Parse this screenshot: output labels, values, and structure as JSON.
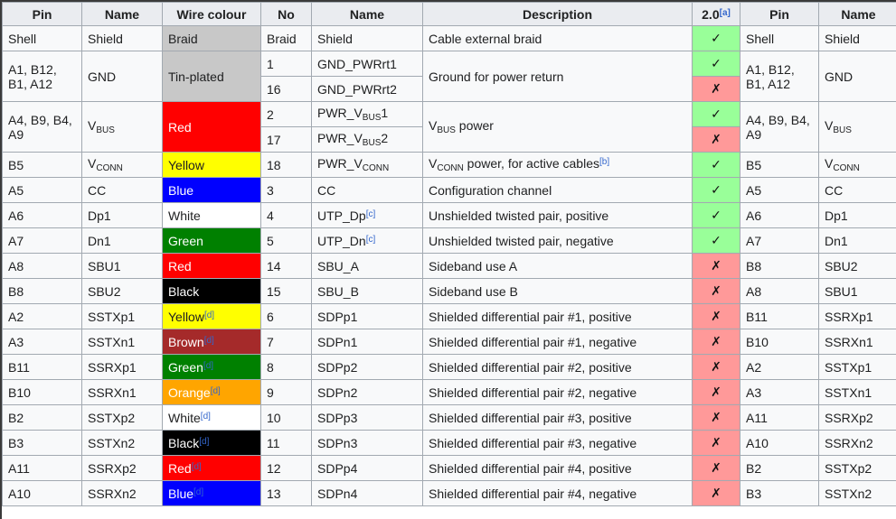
{
  "colors": {
    "header_bg": "#eaecf0",
    "row_bg": "#f8f9fa",
    "border": "#a2a9b1",
    "text": "#202122",
    "link": "#3366cc",
    "yes_bg": "#99ff99",
    "no_bg": "#ff9999",
    "silver": "#c8c8c8",
    "red": "#ff0000",
    "yellow": "#ffff00",
    "blue": "#0000ff",
    "white": "#ffffff",
    "green": "#008000",
    "brown": "#a52a2a",
    "orange": "#ffa500",
    "black": "#000000"
  },
  "marks": {
    "yes": "✓",
    "no": "✗"
  },
  "table": {
    "headers": [
      {
        "key": "pin-left",
        "label": "Pin"
      },
      {
        "key": "name-left",
        "label": "Name"
      },
      {
        "key": "wire-colour",
        "label": "Wire colour"
      },
      {
        "key": "no",
        "label": "No"
      },
      {
        "key": "wire-name",
        "label": "Name"
      },
      {
        "key": "description",
        "label": "Description"
      },
      {
        "key": "usb2-support",
        "label": "2.0^[a]^"
      },
      {
        "key": "pin-right",
        "label": "Pin"
      },
      {
        "key": "name-right",
        "label": "Name"
      }
    ],
    "rows": [
      [
        {
          "col": "pin-left",
          "t": "Shell"
        },
        {
          "col": "name-left",
          "t": "Shield"
        },
        {
          "col": "wire-colour",
          "t": "Braid",
          "bg": "silver"
        },
        {
          "col": "no",
          "t": "Braid"
        },
        {
          "col": "wire-name",
          "t": "Shield"
        },
        {
          "col": "description",
          "t": "Cable external braid"
        },
        {
          "col": "usb2-support",
          "t": "✓",
          "kind": "yes"
        },
        {
          "col": "pin-right",
          "t": "Shell"
        },
        {
          "col": "name-right",
          "t": "Shield"
        }
      ],
      [
        {
          "col": "pin-left",
          "t": "A1, B12, B1, A12",
          "rs": 2
        },
        {
          "col": "name-left",
          "t": "GND",
          "rs": 2
        },
        {
          "col": "wire-colour",
          "t": "Tin-plated",
          "bg": "silver",
          "rs": 2
        },
        {
          "col": "no",
          "t": "1"
        },
        {
          "col": "wire-name",
          "t": "GND_PWRrt1"
        },
        {
          "col": "description",
          "t": "Ground for power return",
          "rs": 2
        },
        {
          "col": "usb2-support",
          "t": "✓",
          "kind": "yes"
        },
        {
          "col": "pin-right",
          "t": "A1, B12, B1, A12",
          "rs": 2
        },
        {
          "col": "name-right",
          "t": "GND",
          "rs": 2
        }
      ],
      [
        {
          "col": "no",
          "t": "16"
        },
        {
          "col": "wire-name",
          "t": "GND_PWRrt2"
        },
        {
          "col": "usb2-support",
          "t": "✗",
          "kind": "no"
        }
      ],
      [
        {
          "col": "pin-left",
          "t": "A4, B9, B4, A9",
          "rs": 2
        },
        {
          "col": "name-left",
          "t": "V~BUS~",
          "rs": 2
        },
        {
          "col": "wire-colour",
          "t": "Red",
          "bg": "red",
          "fg": "white",
          "rs": 2
        },
        {
          "col": "no",
          "t": "2"
        },
        {
          "col": "wire-name",
          "t": "PWR_V~BUS~1"
        },
        {
          "col": "description",
          "t": "V~BUS~ power",
          "rs": 2
        },
        {
          "col": "usb2-support",
          "t": "✓",
          "kind": "yes"
        },
        {
          "col": "pin-right",
          "t": "A4, B9, B4, A9",
          "rs": 2
        },
        {
          "col": "name-right",
          "t": "V~BUS~",
          "rs": 2
        }
      ],
      [
        {
          "col": "no",
          "t": "17"
        },
        {
          "col": "wire-name",
          "t": "PWR_V~BUS~2"
        },
        {
          "col": "usb2-support",
          "t": "✗",
          "kind": "no"
        }
      ],
      [
        {
          "col": "pin-left",
          "t": "B5"
        },
        {
          "col": "name-left",
          "t": "V~CONN~"
        },
        {
          "col": "wire-colour",
          "t": "Yellow",
          "bg": "yellow"
        },
        {
          "col": "no",
          "t": "18"
        },
        {
          "col": "wire-name",
          "t": "PWR_V~CONN~"
        },
        {
          "col": "description",
          "t": "V~CONN~ power, for active cables^[b]^"
        },
        {
          "col": "usb2-support",
          "t": "✓",
          "kind": "yes"
        },
        {
          "col": "pin-right",
          "t": "B5"
        },
        {
          "col": "name-right",
          "t": "V~CONN~"
        }
      ],
      [
        {
          "col": "pin-left",
          "t": "A5"
        },
        {
          "col": "name-left",
          "t": "CC"
        },
        {
          "col": "wire-colour",
          "t": "Blue",
          "bg": "blue",
          "fg": "white"
        },
        {
          "col": "no",
          "t": "3"
        },
        {
          "col": "wire-name",
          "t": "CC"
        },
        {
          "col": "description",
          "t": "Configuration channel"
        },
        {
          "col": "usb2-support",
          "t": "✓",
          "kind": "yes"
        },
        {
          "col": "pin-right",
          "t": "A5"
        },
        {
          "col": "name-right",
          "t": "CC"
        }
      ],
      [
        {
          "col": "pin-left",
          "t": "A6"
        },
        {
          "col": "name-left",
          "t": "Dp1"
        },
        {
          "col": "wire-colour",
          "t": "White",
          "bg": "white"
        },
        {
          "col": "no",
          "t": "4"
        },
        {
          "col": "wire-name",
          "t": "UTP_Dp^[c]^"
        },
        {
          "col": "description",
          "t": "Unshielded twisted pair, positive"
        },
        {
          "col": "usb2-support",
          "t": "✓",
          "kind": "yes"
        },
        {
          "col": "pin-right",
          "t": "A6"
        },
        {
          "col": "name-right",
          "t": "Dp1"
        }
      ],
      [
        {
          "col": "pin-left",
          "t": "A7"
        },
        {
          "col": "name-left",
          "t": "Dn1"
        },
        {
          "col": "wire-colour",
          "t": "Green",
          "bg": "green",
          "fg": "white"
        },
        {
          "col": "no",
          "t": "5"
        },
        {
          "col": "wire-name",
          "t": "UTP_Dn^[c]^"
        },
        {
          "col": "description",
          "t": "Unshielded twisted pair, negative"
        },
        {
          "col": "usb2-support",
          "t": "✓",
          "kind": "yes"
        },
        {
          "col": "pin-right",
          "t": "A7"
        },
        {
          "col": "name-right",
          "t": "Dn1"
        }
      ],
      [
        {
          "col": "pin-left",
          "t": "A8"
        },
        {
          "col": "name-left",
          "t": "SBU1"
        },
        {
          "col": "wire-colour",
          "t": "Red",
          "bg": "red",
          "fg": "white"
        },
        {
          "col": "no",
          "t": "14"
        },
        {
          "col": "wire-name",
          "t": "SBU_A"
        },
        {
          "col": "description",
          "t": "Sideband use A"
        },
        {
          "col": "usb2-support",
          "t": "✗",
          "kind": "no"
        },
        {
          "col": "pin-right",
          "t": "B8"
        },
        {
          "col": "name-right",
          "t": "SBU2"
        }
      ],
      [
        {
          "col": "pin-left",
          "t": "B8"
        },
        {
          "col": "name-left",
          "t": "SBU2"
        },
        {
          "col": "wire-colour",
          "t": "Black",
          "bg": "black",
          "fg": "white"
        },
        {
          "col": "no",
          "t": "15"
        },
        {
          "col": "wire-name",
          "t": "SBU_B"
        },
        {
          "col": "description",
          "t": "Sideband use B"
        },
        {
          "col": "usb2-support",
          "t": "✗",
          "kind": "no"
        },
        {
          "col": "pin-right",
          "t": "A8"
        },
        {
          "col": "name-right",
          "t": "SBU1"
        }
      ],
      [
        {
          "col": "pin-left",
          "t": "A2"
        },
        {
          "col": "name-left",
          "t": "SSTXp1"
        },
        {
          "col": "wire-colour",
          "t": "Yellow^[d]^",
          "bg": "yellow"
        },
        {
          "col": "no",
          "t": "6"
        },
        {
          "col": "wire-name",
          "t": "SDPp1"
        },
        {
          "col": "description",
          "t": "Shielded differential pair #1, positive"
        },
        {
          "col": "usb2-support",
          "t": "✗",
          "kind": "no"
        },
        {
          "col": "pin-right",
          "t": "B11"
        },
        {
          "col": "name-right",
          "t": "SSRXp1"
        }
      ],
      [
        {
          "col": "pin-left",
          "t": "A3"
        },
        {
          "col": "name-left",
          "t": "SSTXn1"
        },
        {
          "col": "wire-colour",
          "t": "Brown^[d]^",
          "bg": "brown",
          "fg": "white"
        },
        {
          "col": "no",
          "t": "7"
        },
        {
          "col": "wire-name",
          "t": "SDPn1"
        },
        {
          "col": "description",
          "t": "Shielded differential pair #1, negative"
        },
        {
          "col": "usb2-support",
          "t": "✗",
          "kind": "no"
        },
        {
          "col": "pin-right",
          "t": "B10"
        },
        {
          "col": "name-right",
          "t": "SSRXn1"
        }
      ],
      [
        {
          "col": "pin-left",
          "t": "B11"
        },
        {
          "col": "name-left",
          "t": "SSRXp1"
        },
        {
          "col": "wire-colour",
          "t": "Green^[d]^",
          "bg": "green",
          "fg": "white"
        },
        {
          "col": "no",
          "t": "8"
        },
        {
          "col": "wire-name",
          "t": "SDPp2"
        },
        {
          "col": "description",
          "t": "Shielded differential pair #2, positive"
        },
        {
          "col": "usb2-support",
          "t": "✗",
          "kind": "no"
        },
        {
          "col": "pin-right",
          "t": "A2"
        },
        {
          "col": "name-right",
          "t": "SSTXp1"
        }
      ],
      [
        {
          "col": "pin-left",
          "t": "B10"
        },
        {
          "col": "name-left",
          "t": "SSRXn1"
        },
        {
          "col": "wire-colour",
          "t": "Orange^[d]^",
          "bg": "orange",
          "fg": "white"
        },
        {
          "col": "no",
          "t": "9"
        },
        {
          "col": "wire-name",
          "t": "SDPn2"
        },
        {
          "col": "description",
          "t": "Shielded differential pair #2, negative"
        },
        {
          "col": "usb2-support",
          "t": "✗",
          "kind": "no"
        },
        {
          "col": "pin-right",
          "t": "A3"
        },
        {
          "col": "name-right",
          "t": "SSTXn1"
        }
      ],
      [
        {
          "col": "pin-left",
          "t": "B2"
        },
        {
          "col": "name-left",
          "t": "SSTXp2"
        },
        {
          "col": "wire-colour",
          "t": "White^[d]^",
          "bg": "white"
        },
        {
          "col": "no",
          "t": "10"
        },
        {
          "col": "wire-name",
          "t": "SDPp3"
        },
        {
          "col": "description",
          "t": "Shielded differential pair #3, positive"
        },
        {
          "col": "usb2-support",
          "t": "✗",
          "kind": "no"
        },
        {
          "col": "pin-right",
          "t": "A11"
        },
        {
          "col": "name-right",
          "t": "SSRXp2"
        }
      ],
      [
        {
          "col": "pin-left",
          "t": "B3"
        },
        {
          "col": "name-left",
          "t": "SSTXn2"
        },
        {
          "col": "wire-colour",
          "t": "Black^[d]^",
          "bg": "black",
          "fg": "white"
        },
        {
          "col": "no",
          "t": "11"
        },
        {
          "col": "wire-name",
          "t": "SDPn3"
        },
        {
          "col": "description",
          "t": "Shielded differential pair #3, negative"
        },
        {
          "col": "usb2-support",
          "t": "✗",
          "kind": "no"
        },
        {
          "col": "pin-right",
          "t": "A10"
        },
        {
          "col": "name-right",
          "t": "SSRXn2"
        }
      ],
      [
        {
          "col": "pin-left",
          "t": "A11"
        },
        {
          "col": "name-left",
          "t": "SSRXp2"
        },
        {
          "col": "wire-colour",
          "t": "Red^[d]^",
          "bg": "red",
          "fg": "white"
        },
        {
          "col": "no",
          "t": "12"
        },
        {
          "col": "wire-name",
          "t": "SDPp4"
        },
        {
          "col": "description",
          "t": "Shielded differential pair #4, positive"
        },
        {
          "col": "usb2-support",
          "t": "✗",
          "kind": "no"
        },
        {
          "col": "pin-right",
          "t": "B2"
        },
        {
          "col": "name-right",
          "t": "SSTXp2"
        }
      ],
      [
        {
          "col": "pin-left",
          "t": "A10"
        },
        {
          "col": "name-left",
          "t": "SSRXn2"
        },
        {
          "col": "wire-colour",
          "t": "Blue^[d]^",
          "bg": "blue",
          "fg": "white"
        },
        {
          "col": "no",
          "t": "13"
        },
        {
          "col": "wire-name",
          "t": "SDPn4"
        },
        {
          "col": "description",
          "t": "Shielded differential pair #4, negative"
        },
        {
          "col": "usb2-support",
          "t": "✗",
          "kind": "no"
        },
        {
          "col": "pin-right",
          "t": "B3"
        },
        {
          "col": "name-right",
          "t": "SSTXn2"
        }
      ]
    ]
  }
}
